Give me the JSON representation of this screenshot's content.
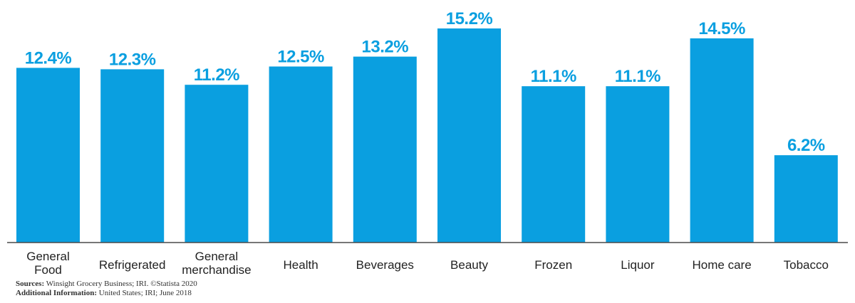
{
  "chart_data": {
    "type": "bar",
    "title": "",
    "xlabel": "",
    "ylabel": "",
    "ylim": [
      0,
      15.2
    ],
    "grid": false,
    "categories": [
      [
        "General",
        "Food"
      ],
      [
        "Refrigerated"
      ],
      [
        "General",
        "merchandise"
      ],
      [
        "Health"
      ],
      [
        "Beverages"
      ],
      [
        "Beauty"
      ],
      [
        "Frozen"
      ],
      [
        "Liquor"
      ],
      [
        "Home care"
      ],
      [
        "Tobacco"
      ]
    ],
    "values": [
      12.4,
      12.3,
      11.2,
      12.5,
      13.2,
      15.2,
      11.1,
      11.1,
      14.5,
      6.2
    ],
    "value_labels": [
      "12.4%",
      "12.3%",
      "11.2%",
      "12.5%",
      "13.2%",
      "15.2%",
      "11.1%",
      "11.1%",
      "14.5%",
      "6.2%"
    ],
    "bar_color": "#0a9fe0"
  },
  "footer": {
    "sources_label": "Sources:",
    "sources_text": " Winsight Grocery Business; IRI. ©Statista 2020",
    "info_label": "Additional Information:",
    "info_text": " United States; IRI; June 2018"
  }
}
